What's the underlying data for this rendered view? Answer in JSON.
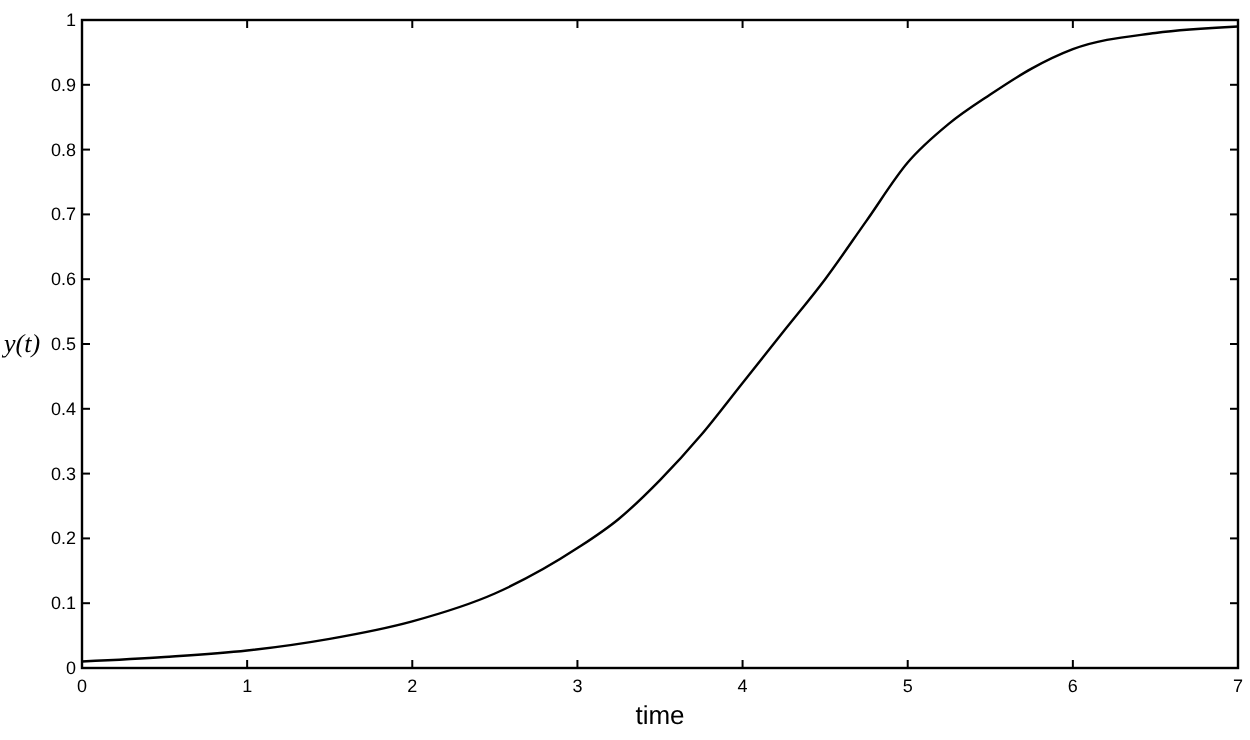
{
  "chart_data": {
    "type": "line",
    "xlabel": "time",
    "ylabel": "y(t)",
    "x": [
      0,
      0.5,
      1,
      1.5,
      2,
      2.5,
      3,
      3.25,
      3.5,
      3.75,
      4,
      4.25,
      4.5,
      4.75,
      5,
      5.25,
      5.5,
      5.75,
      6,
      6.5,
      7
    ],
    "series": [
      {
        "color": "#000000",
        "values": [
          0.01,
          0.017,
          0.027,
          0.045,
          0.072,
          0.115,
          0.185,
          0.23,
          0.29,
          0.36,
          0.44,
          0.52,
          0.6,
          0.69,
          0.78,
          0.84,
          0.885,
          0.925,
          0.955,
          0.98,
          0.99
        ]
      }
    ],
    "xlim": [
      0,
      7
    ],
    "ylim": [
      0,
      1
    ],
    "xticks": [
      0,
      1,
      2,
      3,
      4,
      5,
      6,
      7
    ],
    "yticks": [
      0,
      0.1,
      0.2,
      0.3,
      0.4,
      0.5,
      0.6,
      0.7,
      0.8,
      0.9,
      1
    ],
    "grid": false,
    "marker": "none",
    "line_style": "solid"
  }
}
